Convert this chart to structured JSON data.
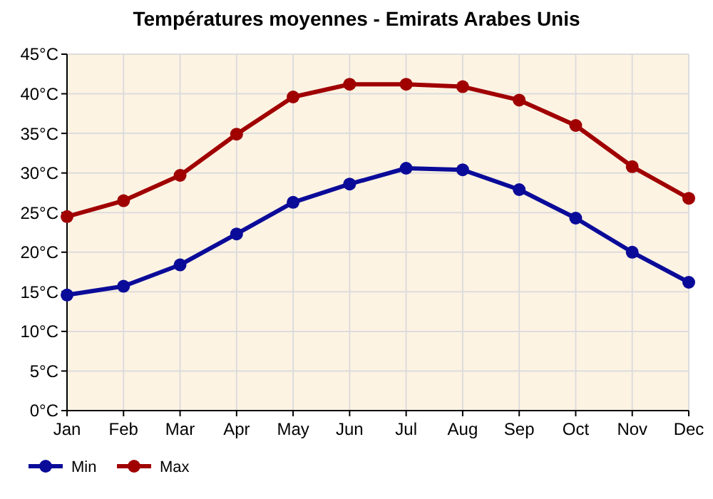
{
  "chart_data": {
    "type": "line",
    "title": "Températures moyennes - Emirats Arabes Unis",
    "categories": [
      "Jan",
      "Feb",
      "Mar",
      "Apr",
      "May",
      "Jun",
      "Jul",
      "Aug",
      "Sep",
      "Oct",
      "Nov",
      "Dec"
    ],
    "series": [
      {
        "name": "Min",
        "color": "#0b0b99",
        "values": [
          14.6,
          15.7,
          18.4,
          22.3,
          26.3,
          28.6,
          30.6,
          30.4,
          27.9,
          24.3,
          20.0,
          16.2
        ]
      },
      {
        "name": "Max",
        "color": "#a00000",
        "values": [
          24.5,
          26.5,
          29.7,
          34.9,
          39.6,
          41.2,
          41.2,
          40.9,
          39.2,
          36.0,
          30.8,
          26.8
        ]
      }
    ],
    "ylim": [
      0,
      45
    ],
    "yticks": [
      {
        "value": 0,
        "label": "0°C"
      },
      {
        "value": 5,
        "label": "5°C"
      },
      {
        "value": 10,
        "label": "10°C"
      },
      {
        "value": 15,
        "label": "15°C"
      },
      {
        "value": 20,
        "label": "20°C"
      },
      {
        "value": 25,
        "label": "25°C"
      },
      {
        "value": 30,
        "label": "30°C"
      },
      {
        "value": 35,
        "label": "35°C"
      },
      {
        "value": 40,
        "label": "40°C"
      },
      {
        "value": 45,
        "label": "45°C"
      }
    ],
    "grid": true,
    "legend": "bottom left",
    "marker": "circle",
    "line_style": "solid"
  }
}
